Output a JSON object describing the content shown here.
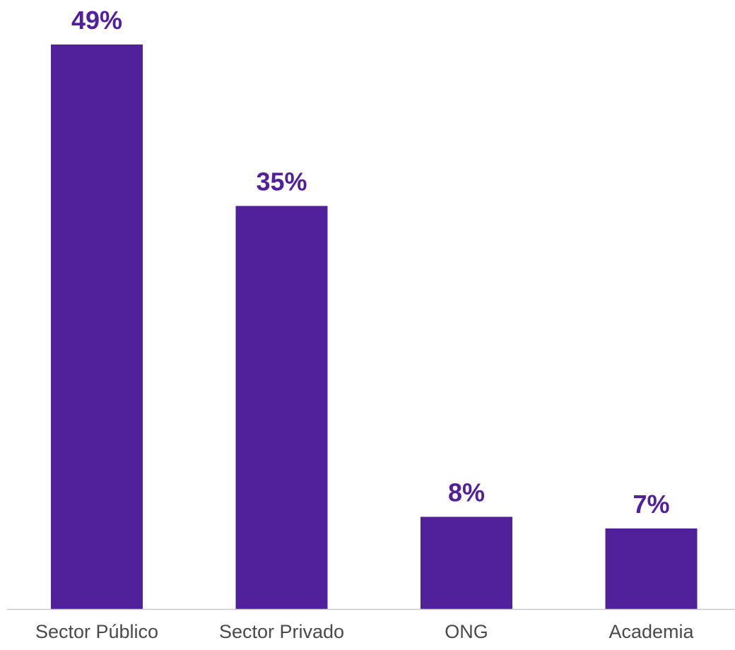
{
  "colors": {
    "bar": "#51209b",
    "value_label": "#51209b",
    "axis": "#c8c8c8",
    "tick_label": "#4a4a4a"
  },
  "chart_data": {
    "type": "bar",
    "categories": [
      "Sector Público",
      "Sector Privado",
      "ONG",
      "Academia"
    ],
    "values": [
      49,
      35,
      8,
      7
    ],
    "value_labels": [
      "49%",
      "35%",
      "8%",
      "7%"
    ],
    "ylim": [
      0,
      49
    ],
    "grid": false,
    "legend": "none"
  }
}
